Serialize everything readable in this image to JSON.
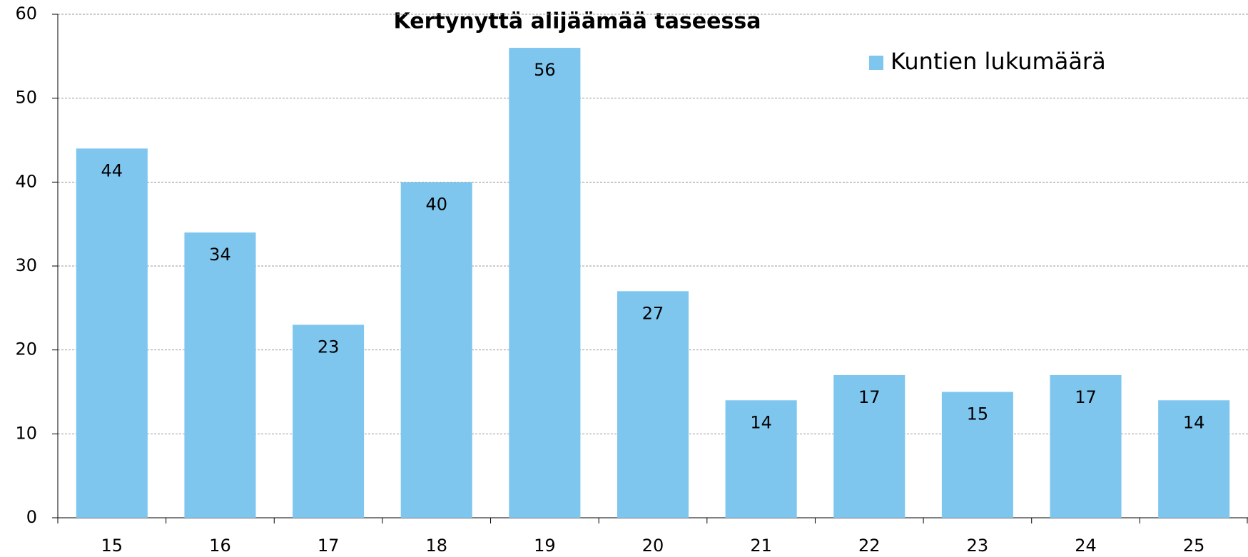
{
  "chart_data": {
    "type": "bar",
    "title": "Kertynyttä alijäämää taseessa",
    "categories": [
      "15",
      "16",
      "17",
      "18",
      "19",
      "20",
      "21",
      "22",
      "23",
      "24",
      "25"
    ],
    "series": [
      {
        "name": "Kuntien lukumäärä",
        "color": "#7fc6ef",
        "values": [
          44,
          34,
          23,
          40,
          56,
          27,
          14,
          17,
          15,
          17,
          14
        ]
      }
    ],
    "ylim": [
      0,
      60
    ],
    "yticks": [
      0,
      10,
      20,
      30,
      40,
      50,
      60
    ],
    "grid": true,
    "legend": "top-right"
  }
}
